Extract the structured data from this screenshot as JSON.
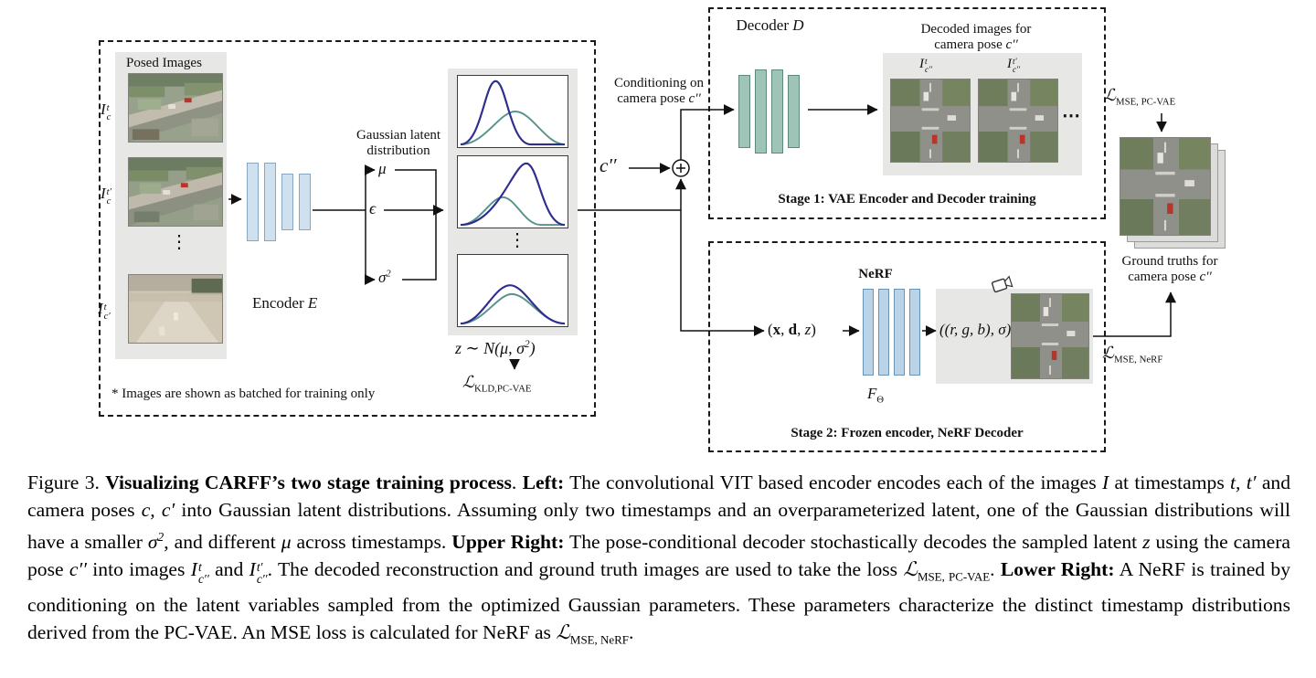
{
  "diagram": {
    "left": {
      "posed_images_label": "Posed Images",
      "img1_label": {
        "base": "I",
        "sup": "t",
        "sub": "c"
      },
      "img2_label": {
        "base": "I",
        "sup": "t′",
        "sub": "c"
      },
      "img3_label": {
        "base": "I",
        "sup": "t",
        "sub": "c′"
      },
      "vdots": "⋮",
      "encoder_label": {
        "text": "Encoder ",
        "var": "E"
      },
      "gaussian_label": {
        "line1": "Gaussian latent",
        "line2": "distribution"
      },
      "mu": "μ",
      "epsilon": "ϵ",
      "sigma": {
        "base": "σ",
        "sup": "2"
      },
      "z_dist": {
        "pre": "z ∼ N(μ, σ",
        "sup": "2",
        "post": ")"
      },
      "kld_loss": {
        "l": "ℒ",
        "sub": "KLD,PC-VAE"
      },
      "footnote": "* Images are shown as batched for training only"
    },
    "middle": {
      "conditioning": {
        "line1": "Conditioning on",
        "line2_pre": "camera pose ",
        "line2_math": "c′′"
      },
      "c_pp": "c′′"
    },
    "stage1": {
      "decoder_label": {
        "text": "Decoder ",
        "var": "D"
      },
      "decoded_header": {
        "line1": "Decoded images for",
        "line2_pre": "camera pose ",
        "line2_math": "c′′"
      },
      "img1_label": {
        "base": "I",
        "sup": "t",
        "sub": "c′′"
      },
      "img2_label": {
        "base": "I",
        "sup": "t′",
        "sub": "c′′"
      },
      "hdots": "⋯",
      "stage_label": "Stage 1: VAE Encoder and Decoder training"
    },
    "stage2": {
      "nerf_label": "NeRF",
      "input": {
        "p1": "(",
        "x": "x",
        "p2": ", ",
        "d": "d",
        "p3": ", ",
        "z": "z",
        "p4": ")"
      },
      "output": "((r, g, b), σ)",
      "f_theta": {
        "base": "F",
        "sub": "Θ"
      },
      "stage_label": "Stage 2: Frozen encoder, NeRF Decoder"
    },
    "right": {
      "mse_pcvae": {
        "l": "ℒ",
        "sub": "MSE, PC-VAE"
      },
      "mse_nerf": {
        "l": "ℒ",
        "sub": "MSE, NeRF"
      },
      "gt_header": {
        "line1": "Ground truths for",
        "line2_pre": "camera pose ",
        "line2_math": "c′′"
      }
    }
  },
  "caption": {
    "segments": [
      {
        "t": "Figure 3. "
      },
      {
        "t": "Visualizing CARFF’s two stage training process"
      },
      {
        "t": ". "
      },
      {
        "t": "Left:"
      },
      {
        "t": " The convolutional VIT based encoder encodes each of the images "
      },
      {
        "t": "I"
      },
      {
        "t": " at timestamps "
      },
      {
        "t": "t, t′"
      },
      {
        "t": " and camera poses "
      },
      {
        "t": "c, c′"
      },
      {
        "t": " into Gaussian latent distributions. Assuming only two timestamps and an overparameterized latent, one of the Gaussian distributions will have a smaller "
      },
      {
        "t": "σ",
        "sup": "2"
      },
      {
        "t": ", and different "
      },
      {
        "t": "μ"
      },
      {
        "t": " across timestamps. "
      },
      {
        "t": "Upper Right:"
      },
      {
        "t": " The pose-conditional decoder stochastically decodes the sampled latent "
      },
      {
        "t": "z"
      },
      {
        "t": " using the camera pose "
      },
      {
        "t": "c′′"
      },
      {
        "t": " into images "
      },
      {
        "base": "I",
        "sup": "t",
        "sub": "c′′"
      },
      {
        "t": " and "
      },
      {
        "base": "I",
        "sup": "t′",
        "sub": "c′′"
      },
      {
        "t": ". The decoded reconstruction and ground truth images are used to take the loss "
      },
      {
        "l": "ℒ",
        "sub": "MSE, PC-VAE"
      },
      {
        "t": ". "
      },
      {
        "t": "Lower Right:"
      },
      {
        "t": " A NeRF is trained by conditioning on the latent variables sampled from the optimized Gaussian parameters. These parameters characterize the distinct timestamp distributions derived from the PC-VAE. An MSE loss is calculated for NeRF as "
      },
      {
        "l": "ℒ",
        "sub": "MSE, NeRF"
      },
      {
        "t": "."
      }
    ]
  }
}
